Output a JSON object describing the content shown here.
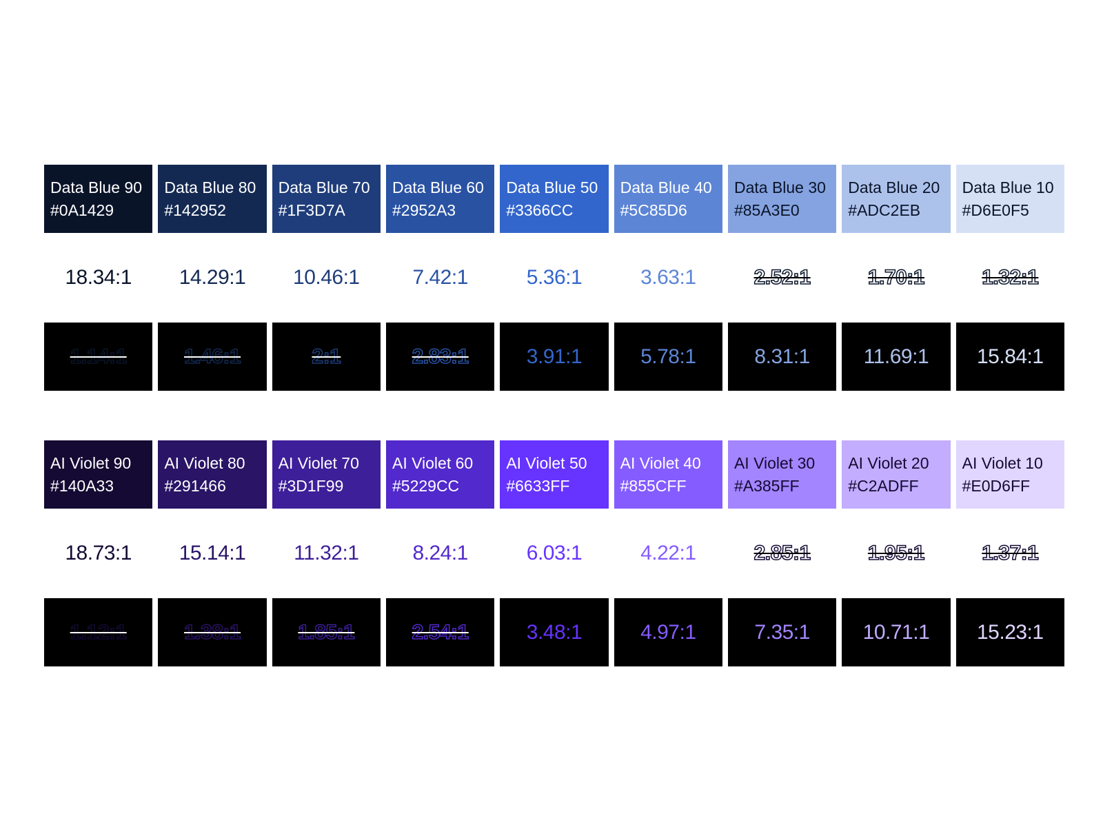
{
  "palettes": [
    {
      "key": "blue",
      "swatches": [
        {
          "name": "Data Blue 90",
          "hex": "#0A1429",
          "color": "#0A1429",
          "text": "#ffffff",
          "white_ratio": "18.34:1",
          "white_pass": true,
          "black_ratio": "1.14:1",
          "black_pass": false
        },
        {
          "name": "Data Blue 80",
          "hex": "#142952",
          "color": "#142952",
          "text": "#ffffff",
          "white_ratio": "14.29:1",
          "white_pass": true,
          "black_ratio": "1.46:1",
          "black_pass": false
        },
        {
          "name": "Data Blue 70",
          "hex": "#1F3D7A",
          "color": "#1F3D7A",
          "text": "#ffffff",
          "white_ratio": "10.46:1",
          "white_pass": true,
          "black_ratio": "2:1",
          "black_pass": false
        },
        {
          "name": "Data Blue 60",
          "hex": "#2952A3",
          "color": "#2952A3",
          "text": "#ffffff",
          "white_ratio": "7.42:1",
          "white_pass": true,
          "black_ratio": "2.83:1",
          "black_pass": false
        },
        {
          "name": "Data Blue 50",
          "hex": "#3366CC",
          "color": "#3366CC",
          "text": "#ffffff",
          "white_ratio": "5.36:1",
          "white_pass": true,
          "black_ratio": "3.91:1",
          "black_pass": true
        },
        {
          "name": "Data Blue 40",
          "hex": "#5C85D6",
          "color": "#5C85D6",
          "text": "#ffffff",
          "white_ratio": "3.63:1",
          "white_pass": true,
          "black_ratio": "5.78:1",
          "black_pass": true
        },
        {
          "name": "Data Blue 30",
          "hex": "#85A3E0",
          "color": "#85A3E0",
          "text": "#0A1429",
          "white_ratio": "2.52:1",
          "white_pass": false,
          "black_ratio": "8.31:1",
          "black_pass": true
        },
        {
          "name": "Data Blue 20",
          "hex": "#ADC2EB",
          "color": "#ADC2EB",
          "text": "#0A1429",
          "white_ratio": "1.70:1",
          "white_pass": false,
          "black_ratio": "11.69:1",
          "black_pass": true
        },
        {
          "name": "Data Blue 10",
          "hex": "#D6E0F5",
          "color": "#D6E0F5",
          "text": "#0A1429",
          "white_ratio": "1.32:1",
          "white_pass": false,
          "black_ratio": "15.84:1",
          "black_pass": true
        }
      ]
    },
    {
      "key": "violet",
      "swatches": [
        {
          "name": "AI Violet 90",
          "hex": "#140A33",
          "color": "#140A33",
          "text": "#ffffff",
          "white_ratio": "18.73:1",
          "white_pass": true,
          "black_ratio": "1.12:1",
          "black_pass": false
        },
        {
          "name": "AI Violet 80",
          "hex": "#291466",
          "color": "#291466",
          "text": "#ffffff",
          "white_ratio": "15.14:1",
          "white_pass": true,
          "black_ratio": "1.38:1",
          "black_pass": false
        },
        {
          "name": "AI Violet 70",
          "hex": "#3D1F99",
          "color": "#3D1F99",
          "text": "#ffffff",
          "white_ratio": "11.32:1",
          "white_pass": true,
          "black_ratio": "1.85:1",
          "black_pass": false
        },
        {
          "name": "AI Violet 60",
          "hex": "#5229CC",
          "color": "#5229CC",
          "text": "#ffffff",
          "white_ratio": "8.24:1",
          "white_pass": true,
          "black_ratio": "2.54:1",
          "black_pass": false
        },
        {
          "name": "AI Violet 50",
          "hex": "#6633FF",
          "color": "#6633FF",
          "text": "#ffffff",
          "white_ratio": "6.03:1",
          "white_pass": true,
          "black_ratio": "3.48:1",
          "black_pass": true
        },
        {
          "name": "AI Violet 40",
          "hex": "#855CFF",
          "color": "#855CFF",
          "text": "#ffffff",
          "white_ratio": "4.22:1",
          "white_pass": true,
          "black_ratio": "4.97:1",
          "black_pass": true
        },
        {
          "name": "AI Violet 30",
          "hex": "#A385FF",
          "color": "#A385FF",
          "text": "#140A33",
          "white_ratio": "2.85:1",
          "white_pass": false,
          "black_ratio": "7.35:1",
          "black_pass": true
        },
        {
          "name": "AI Violet 20",
          "hex": "#C2ADFF",
          "color": "#C2ADFF",
          "text": "#140A33",
          "white_ratio": "1.95:1",
          "white_pass": false,
          "black_ratio": "10.71:1",
          "black_pass": true
        },
        {
          "name": "AI Violet 10",
          "hex": "#E0D6FF",
          "color": "#E0D6FF",
          "text": "#140A33",
          "white_ratio": "1.37:1",
          "white_pass": false,
          "black_ratio": "15.23:1",
          "black_pass": true
        }
      ]
    }
  ]
}
